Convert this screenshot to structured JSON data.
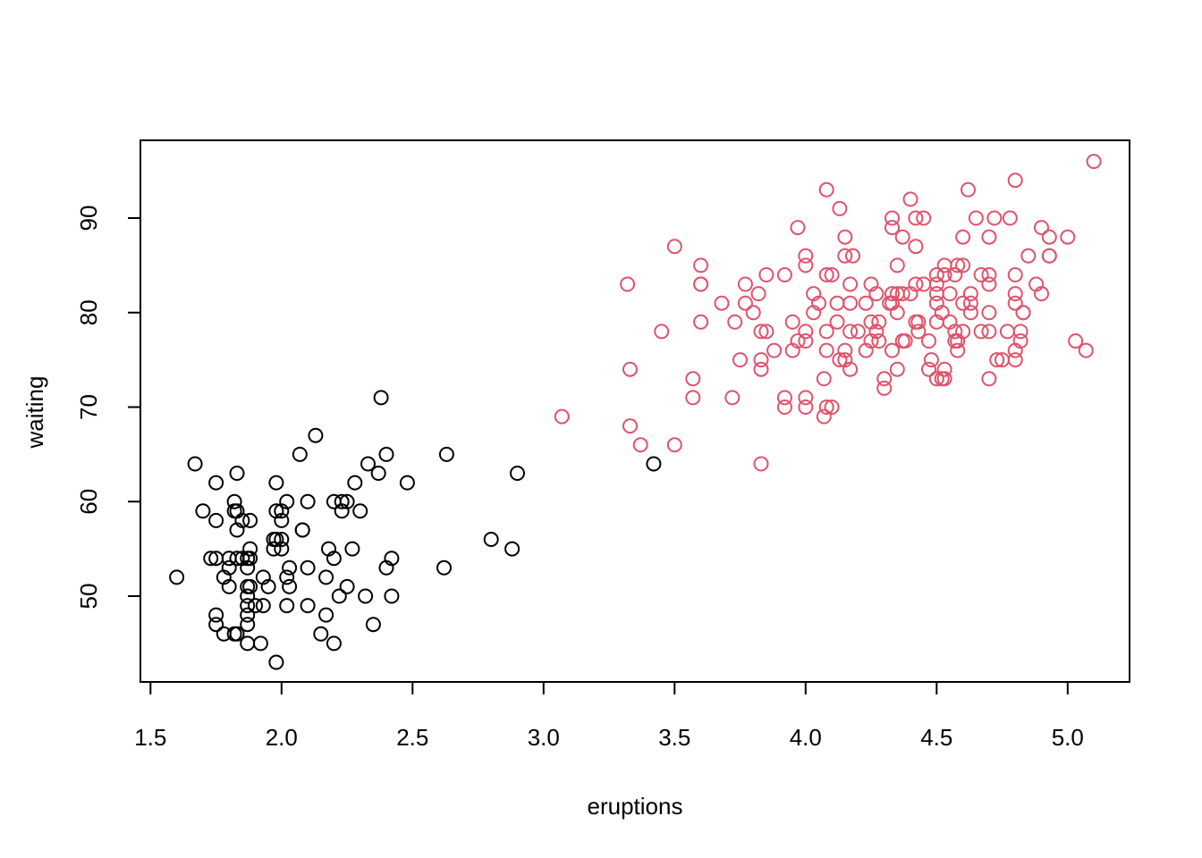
{
  "chart_data": {
    "type": "scatter",
    "xlabel": "eruptions",
    "ylabel": "waiting",
    "xlim": [
      1.5,
      5.15
    ],
    "ylim": [
      41.5,
      97.5
    ],
    "xticks": [
      "1.5",
      "2.0",
      "2.5",
      "3.0",
      "3.5",
      "4.0",
      "4.5",
      "5.0"
    ],
    "yticks": [
      "50",
      "60",
      "70",
      "80",
      "90"
    ],
    "grid": false,
    "legend": "none",
    "marker": "open-circle",
    "series": [
      {
        "color": "#000000",
        "points": [
          [
            1.6,
            52
          ],
          [
            1.67,
            64
          ],
          [
            1.7,
            59
          ],
          [
            1.73,
            54
          ],
          [
            1.75,
            54
          ],
          [
            1.75,
            48
          ],
          [
            1.75,
            47
          ],
          [
            1.75,
            58
          ],
          [
            1.75,
            62
          ],
          [
            1.78,
            52
          ],
          [
            1.78,
            46
          ],
          [
            1.8,
            54
          ],
          [
            1.8,
            53
          ],
          [
            1.8,
            51
          ],
          [
            1.82,
            60
          ],
          [
            1.82,
            59
          ],
          [
            1.82,
            46
          ],
          [
            1.83,
            59
          ],
          [
            1.83,
            57
          ],
          [
            1.83,
            54
          ],
          [
            1.83,
            63
          ],
          [
            1.83,
            46
          ],
          [
            1.85,
            54
          ],
          [
            1.85,
            58
          ],
          [
            1.87,
            54
          ],
          [
            1.87,
            53
          ],
          [
            1.87,
            51
          ],
          [
            1.87,
            50
          ],
          [
            1.87,
            49
          ],
          [
            1.87,
            48
          ],
          [
            1.87,
            47
          ],
          [
            1.87,
            45
          ],
          [
            1.88,
            55
          ],
          [
            1.88,
            58
          ],
          [
            1.88,
            51
          ],
          [
            1.88,
            54
          ],
          [
            1.9,
            49
          ],
          [
            1.92,
            45
          ],
          [
            1.93,
            49
          ],
          [
            1.93,
            52
          ],
          [
            1.95,
            51
          ],
          [
            1.97,
            56
          ],
          [
            1.97,
            55
          ],
          [
            1.98,
            56
          ],
          [
            1.98,
            62
          ],
          [
            1.98,
            59
          ],
          [
            1.98,
            43
          ],
          [
            2.0,
            59
          ],
          [
            2.0,
            58
          ],
          [
            2.0,
            56
          ],
          [
            2.0,
            55
          ],
          [
            2.02,
            60
          ],
          [
            2.02,
            52
          ],
          [
            2.02,
            49
          ],
          [
            2.03,
            53
          ],
          [
            2.03,
            51
          ],
          [
            2.07,
            65
          ],
          [
            2.08,
            57
          ],
          [
            2.08,
            57
          ],
          [
            2.1,
            60
          ],
          [
            2.1,
            53
          ],
          [
            2.1,
            49
          ],
          [
            2.13,
            67
          ],
          [
            2.15,
            46
          ],
          [
            2.17,
            52
          ],
          [
            2.17,
            48
          ],
          [
            2.18,
            55
          ],
          [
            2.2,
            60
          ],
          [
            2.2,
            54
          ],
          [
            2.2,
            45
          ],
          [
            2.22,
            50
          ],
          [
            2.23,
            60
          ],
          [
            2.23,
            59
          ],
          [
            2.25,
            60
          ],
          [
            2.25,
            51
          ],
          [
            2.27,
            55
          ],
          [
            2.28,
            62
          ],
          [
            2.3,
            59
          ],
          [
            2.32,
            50
          ],
          [
            2.33,
            64
          ],
          [
            2.35,
            47
          ],
          [
            2.37,
            63
          ],
          [
            2.38,
            71
          ],
          [
            2.4,
            65
          ],
          [
            2.4,
            53
          ],
          [
            2.42,
            54
          ],
          [
            2.42,
            50
          ],
          [
            2.48,
            62
          ],
          [
            2.62,
            53
          ],
          [
            2.63,
            65
          ],
          [
            2.8,
            56
          ],
          [
            2.88,
            55
          ],
          [
            2.9,
            63
          ],
          [
            3.42,
            64
          ]
        ]
      },
      {
        "color": "#DF536B",
        "points": [
          [
            3.07,
            69
          ],
          [
            3.32,
            83
          ],
          [
            3.33,
            74
          ],
          [
            3.33,
            68
          ],
          [
            3.37,
            66
          ],
          [
            3.45,
            78
          ],
          [
            3.5,
            87
          ],
          [
            3.5,
            66
          ],
          [
            3.57,
            73
          ],
          [
            3.57,
            71
          ],
          [
            3.6,
            85
          ],
          [
            3.6,
            83
          ],
          [
            3.6,
            83
          ],
          [
            3.6,
            79
          ],
          [
            3.68,
            81
          ],
          [
            3.72,
            71
          ],
          [
            3.73,
            79
          ],
          [
            3.75,
            75
          ],
          [
            3.77,
            83
          ],
          [
            3.77,
            81
          ],
          [
            3.8,
            80
          ],
          [
            3.82,
            82
          ],
          [
            3.83,
            78
          ],
          [
            3.83,
            75
          ],
          [
            3.83,
            74
          ],
          [
            3.83,
            64
          ],
          [
            3.85,
            84
          ],
          [
            3.85,
            78
          ],
          [
            3.88,
            76
          ],
          [
            3.92,
            84
          ],
          [
            3.92,
            71
          ],
          [
            3.92,
            70
          ],
          [
            3.95,
            79
          ],
          [
            3.95,
            76
          ],
          [
            3.97,
            89
          ],
          [
            3.97,
            77
          ],
          [
            4.0,
            86
          ],
          [
            4.0,
            85
          ],
          [
            4.0,
            78
          ],
          [
            4.0,
            77
          ],
          [
            4.0,
            71
          ],
          [
            4.0,
            70
          ],
          [
            4.03,
            82
          ],
          [
            4.03,
            80
          ],
          [
            4.05,
            81
          ],
          [
            4.07,
            73
          ],
          [
            4.07,
            69
          ],
          [
            4.08,
            93
          ],
          [
            4.08,
            84
          ],
          [
            4.08,
            78
          ],
          [
            4.08,
            76
          ],
          [
            4.08,
            70
          ],
          [
            4.1,
            84
          ],
          [
            4.1,
            70
          ],
          [
            4.12,
            81
          ],
          [
            4.12,
            79
          ],
          [
            4.13,
            91
          ],
          [
            4.13,
            75
          ],
          [
            4.15,
            88
          ],
          [
            4.15,
            86
          ],
          [
            4.15,
            76
          ],
          [
            4.15,
            75
          ],
          [
            4.17,
            83
          ],
          [
            4.17,
            81
          ],
          [
            4.17,
            78
          ],
          [
            4.17,
            74
          ],
          [
            4.18,
            86
          ],
          [
            4.2,
            78
          ],
          [
            4.23,
            81
          ],
          [
            4.23,
            76
          ],
          [
            4.25,
            83
          ],
          [
            4.25,
            79
          ],
          [
            4.25,
            77
          ],
          [
            4.27,
            82
          ],
          [
            4.27,
            78
          ],
          [
            4.28,
            79
          ],
          [
            4.28,
            77
          ],
          [
            4.3,
            73
          ],
          [
            4.3,
            72
          ],
          [
            4.32,
            81
          ],
          [
            4.33,
            90
          ],
          [
            4.33,
            89
          ],
          [
            4.33,
            82
          ],
          [
            4.33,
            81
          ],
          [
            4.33,
            76
          ],
          [
            4.35,
            85
          ],
          [
            4.35,
            82
          ],
          [
            4.35,
            80
          ],
          [
            4.35,
            74
          ],
          [
            4.37,
            88
          ],
          [
            4.37,
            82
          ],
          [
            4.37,
            77
          ],
          [
            4.38,
            77
          ],
          [
            4.4,
            92
          ],
          [
            4.4,
            82
          ],
          [
            4.42,
            90
          ],
          [
            4.42,
            87
          ],
          [
            4.42,
            83
          ],
          [
            4.42,
            79
          ],
          [
            4.43,
            79
          ],
          [
            4.43,
            78
          ],
          [
            4.45,
            90
          ],
          [
            4.45,
            83
          ],
          [
            4.47,
            77
          ],
          [
            4.47,
            74
          ],
          [
            4.48,
            75
          ],
          [
            4.5,
            84
          ],
          [
            4.5,
            83
          ],
          [
            4.5,
            82
          ],
          [
            4.5,
            81
          ],
          [
            4.5,
            79
          ],
          [
            4.5,
            73
          ],
          [
            4.52,
            80
          ],
          [
            4.52,
            73
          ],
          [
            4.53,
            85
          ],
          [
            4.53,
            84
          ],
          [
            4.53,
            74
          ],
          [
            4.53,
            73
          ],
          [
            4.55,
            82
          ],
          [
            4.55,
            79
          ],
          [
            4.57,
            84
          ],
          [
            4.57,
            78
          ],
          [
            4.57,
            77
          ],
          [
            4.58,
            85
          ],
          [
            4.58,
            77
          ],
          [
            4.58,
            76
          ],
          [
            4.6,
            88
          ],
          [
            4.6,
            85
          ],
          [
            4.6,
            81
          ],
          [
            4.6,
            78
          ],
          [
            4.62,
            93
          ],
          [
            4.63,
            82
          ],
          [
            4.63,
            81
          ],
          [
            4.63,
            80
          ],
          [
            4.65,
            90
          ],
          [
            4.67,
            84
          ],
          [
            4.67,
            78
          ],
          [
            4.7,
            88
          ],
          [
            4.7,
            84
          ],
          [
            4.7,
            83
          ],
          [
            4.7,
            80
          ],
          [
            4.7,
            78
          ],
          [
            4.7,
            73
          ],
          [
            4.72,
            90
          ],
          [
            4.73,
            75
          ],
          [
            4.75,
            75
          ],
          [
            4.77,
            78
          ],
          [
            4.78,
            90
          ],
          [
            4.8,
            94
          ],
          [
            4.8,
            84
          ],
          [
            4.8,
            82
          ],
          [
            4.8,
            81
          ],
          [
            4.8,
            76
          ],
          [
            4.8,
            75
          ],
          [
            4.82,
            78
          ],
          [
            4.82,
            77
          ],
          [
            4.83,
            80
          ],
          [
            4.83,
            80
          ],
          [
            4.85,
            86
          ],
          [
            4.88,
            83
          ],
          [
            4.9,
            89
          ],
          [
            4.9,
            82
          ],
          [
            4.93,
            88
          ],
          [
            4.93,
            86
          ],
          [
            4.93,
            86
          ],
          [
            5.0,
            88
          ],
          [
            5.03,
            77
          ],
          [
            5.07,
            76
          ],
          [
            5.1,
            96
          ]
        ]
      }
    ]
  }
}
